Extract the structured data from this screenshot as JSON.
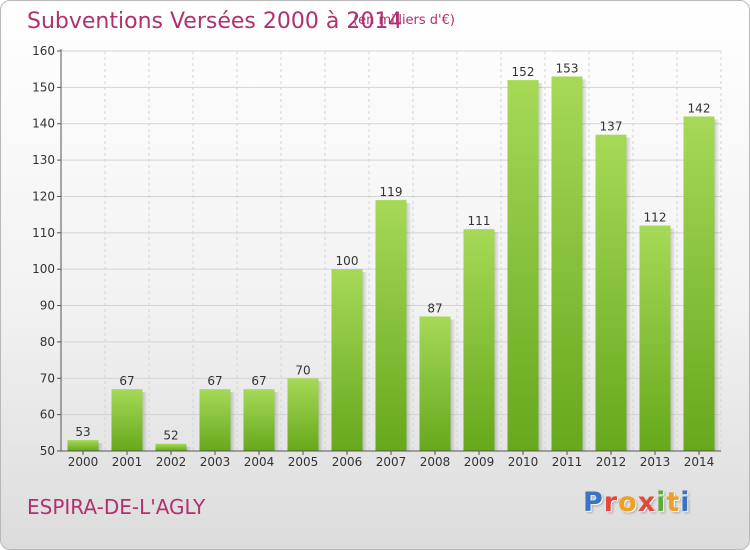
{
  "header": {
    "title": "Subventions Versées 2000 à 2014",
    "subtitle": "(en milliers d'€)"
  },
  "footer": {
    "place": "ESPIRA-DE-L'AGLY",
    "logo_text": "Proxiti"
  },
  "colors": {
    "accent": "#b03070",
    "bar_light": "#a6d957",
    "bar_dark": "#66a81c",
    "grid": "#d4d4d4"
  },
  "chart_data": {
    "type": "bar",
    "title": "Subventions Versées 2000 à 2014",
    "subtitle": "(en milliers d'€)",
    "xlabel": "",
    "ylabel": "",
    "categories": [
      "2000",
      "2001",
      "2002",
      "2003",
      "2004",
      "2005",
      "2006",
      "2007",
      "2008",
      "2009",
      "2010",
      "2011",
      "2012",
      "2013",
      "2014"
    ],
    "values": [
      53,
      67,
      52,
      67,
      67,
      70,
      100,
      119,
      87,
      111,
      152,
      153,
      137,
      112,
      142
    ],
    "ylim": [
      50,
      160
    ],
    "yticks": [
      50,
      60,
      70,
      80,
      90,
      100,
      110,
      120,
      130,
      140,
      150,
      160
    ],
    "grid": true,
    "data_labels": true
  }
}
